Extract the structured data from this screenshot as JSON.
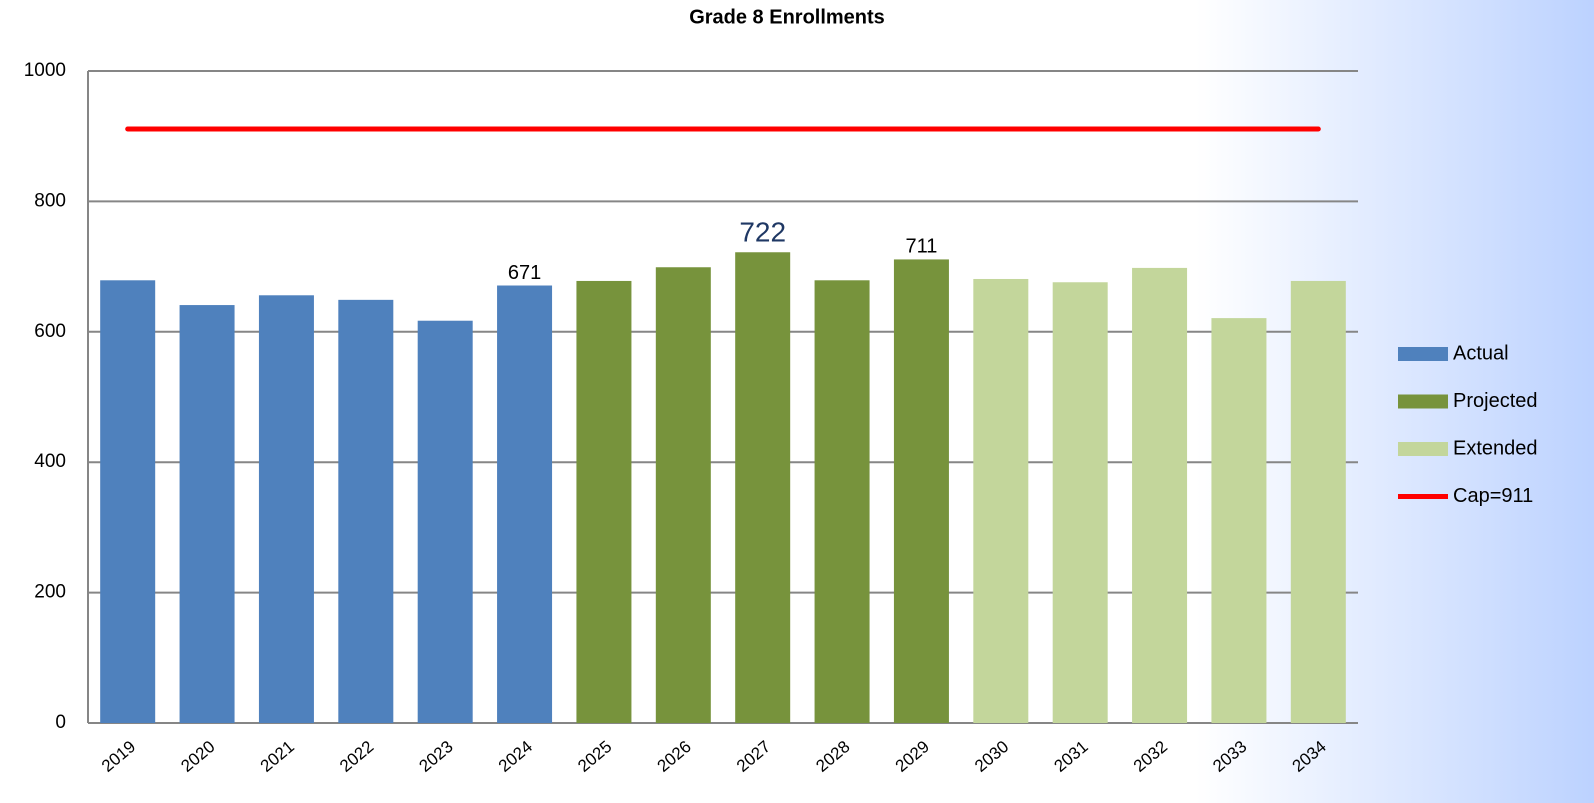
{
  "chart_data": {
    "type": "bar",
    "title": "Grade 8 Enrollments",
    "categories": [
      "2019",
      "2020",
      "2021",
      "2022",
      "2023",
      "2024",
      "2025",
      "2026",
      "2027",
      "2028",
      "2029",
      "2030",
      "2031",
      "2032",
      "2033",
      "2034"
    ],
    "series": [
      {
        "name": "Actual",
        "color": "#4f81bd",
        "values": [
          679,
          641,
          656,
          649,
          617,
          671,
          null,
          null,
          null,
          null,
          null,
          null,
          null,
          null,
          null,
          null
        ],
        "value_labels": [
          null,
          null,
          null,
          null,
          null,
          "671",
          null,
          null,
          null,
          null,
          null,
          null,
          null,
          null,
          null,
          null
        ]
      },
      {
        "name": "Projected",
        "color": "#77933c",
        "values": [
          null,
          null,
          null,
          null,
          null,
          null,
          678,
          699,
          722,
          679,
          711,
          null,
          null,
          null,
          null,
          null
        ],
        "value_labels": [
          null,
          null,
          null,
          null,
          null,
          null,
          null,
          null,
          "722",
          null,
          "711",
          null,
          null,
          null,
          null,
          null
        ]
      },
      {
        "name": "Extended",
        "color": "#c3d69b",
        "values": [
          null,
          null,
          null,
          null,
          null,
          null,
          null,
          null,
          null,
          null,
          null,
          681,
          676,
          698,
          621,
          678
        ]
      },
      {
        "name": "Cap=911",
        "type": "line",
        "color": "#ff0000",
        "values": [
          911,
          911,
          911,
          911,
          911,
          911,
          911,
          911,
          911,
          911,
          911,
          911,
          911,
          911,
          911,
          911
        ]
      }
    ],
    "ylim": [
      0,
      1000
    ],
    "yticks": [
      0,
      200,
      400,
      600,
      800,
      1000
    ],
    "grid": true,
    "legend": "right"
  }
}
